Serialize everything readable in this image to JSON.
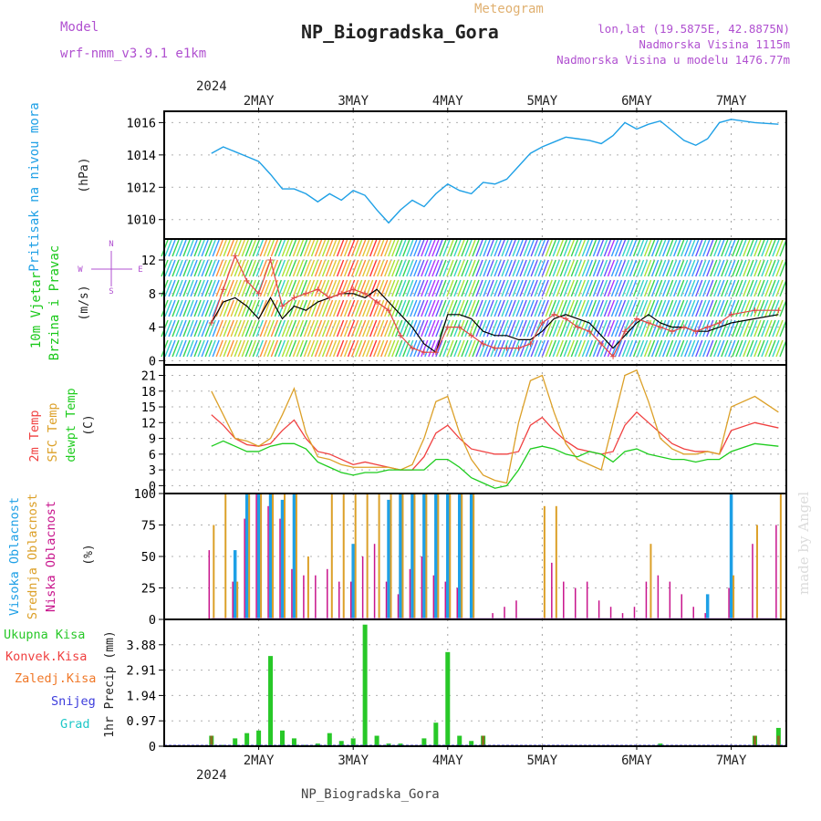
{
  "header": {
    "model_label": "Model",
    "model_name": "wrf-nmm_v3.9.1 e1km",
    "product": "Meteogram",
    "station": "NP_Biogradska_Gora",
    "coords": "lon,lat (19.5875E, 42.8875N)",
    "elevation": "Nadmorska Visina 1115m",
    "model_elevation": "Nadmorska Visina u modelu 1476.77m",
    "footer_station": "NP_Biogradska_Gora",
    "watermark": "made by Angel",
    "year_top": "2024",
    "year_bottom": "2024"
  },
  "colors": {
    "pressure": "#1ea0e6",
    "wind_label": "#19c819",
    "t2m": "#f04040",
    "sfc": "#dca028",
    "dew": "#1ecc1e",
    "high_cloud": "#1ea0e6",
    "mid_cloud": "#dca028",
    "low_cloud": "#c8148c",
    "rain_total": "#28c828",
    "rain_conv": "#f04040",
    "rain_frozen": "#f07828",
    "snow": "#3c3cdc",
    "graupel": "#1ec8c8",
    "model_label": "#b050d0",
    "product": "#e0b070"
  },
  "chart_data": [
    {
      "type": "line",
      "name": "pressure",
      "ylabel": "Pritisak na nivou mora",
      "unit": "(hPa)",
      "ylim": [
        1008.8,
        1016.7
      ],
      "yticks": [
        1010,
        1012,
        1014,
        1016
      ],
      "x_days": [
        "2MAY",
        "3MAY",
        "4MAY",
        "5MAY",
        "6MAY",
        "7MAY"
      ],
      "x_hours": [
        0,
        3,
        6,
        9,
        12,
        15,
        18,
        21,
        24,
        27,
        30,
        33,
        36,
        39,
        42,
        45,
        48,
        51,
        54,
        57,
        60,
        63,
        66,
        69,
        72,
        75,
        78,
        81,
        84,
        87,
        90,
        93,
        96,
        99,
        102,
        105,
        108,
        111,
        114,
        117,
        120,
        123,
        126,
        129,
        132,
        138,
        144
      ],
      "values": [
        1014.1,
        1014.5,
        1014.2,
        1013.9,
        1013.6,
        1012.8,
        1011.9,
        1011.9,
        1011.6,
        1011.1,
        1011.6,
        1011.2,
        1011.8,
        1011.5,
        1010.6,
        1009.8,
        1010.6,
        1011.2,
        1010.8,
        1011.6,
        1012.2,
        1011.8,
        1011.6,
        1012.3,
        1012.2,
        1012.5,
        1013.3,
        1014.1,
        1014.5,
        1014.8,
        1015.1,
        1015.0,
        1014.9,
        1014.7,
        1015.2,
        1016.0,
        1015.6,
        1015.9,
        1016.1,
        1015.5,
        1014.9,
        1014.6,
        1015.0,
        1016.0,
        1016.2,
        1016.0,
        1015.9
      ],
      "grid": true
    },
    {
      "type": "line",
      "name": "wind",
      "ylabel": "10m Vjetar Brzina i Pravac",
      "unit": "(m/s)",
      "compass": [
        "N",
        "E",
        "S",
        "W"
      ],
      "ylim": [
        -0.5,
        14.5
      ],
      "yticks": [
        0,
        4,
        8,
        12
      ],
      "x_hours": [
        0,
        3,
        6,
        9,
        12,
        15,
        18,
        21,
        24,
        27,
        30,
        33,
        36,
        39,
        42,
        45,
        48,
        51,
        54,
        57,
        60,
        63,
        66,
        69,
        72,
        75,
        78,
        81,
        84,
        87,
        90,
        93,
        96,
        99,
        102,
        105,
        108,
        111,
        114,
        117,
        120,
        123,
        126,
        129,
        132,
        138,
        144
      ],
      "mean_speed": [
        4.5,
        7.0,
        7.5,
        6.5,
        5.0,
        7.5,
        5.0,
        6.5,
        6.0,
        7.0,
        7.5,
        8.0,
        8.0,
        7.5,
        8.5,
        7.0,
        5.5,
        4.0,
        2.0,
        1.0,
        5.5,
        5.5,
        5.0,
        3.5,
        3.0,
        3.0,
        2.5,
        2.5,
        3.5,
        5.0,
        5.5,
        5.0,
        4.5,
        3.0,
        1.5,
        3.0,
        4.5,
        5.5,
        4.5,
        4.0,
        4.0,
        3.5,
        3.5,
        4.0,
        4.5,
        5.0,
        5.5
      ],
      "gust": [
        4.5,
        8.5,
        12.5,
        9.5,
        8.0,
        12.0,
        6.5,
        7.5,
        8.0,
        8.5,
        7.5,
        8.0,
        8.5,
        8.0,
        7.0,
        6.0,
        3.0,
        1.5,
        1.0,
        1.0,
        4.0,
        4.0,
        3.0,
        2.0,
        1.5,
        1.5,
        1.5,
        2.0,
        4.5,
        5.5,
        5.0,
        4.0,
        3.5,
        2.0,
        0.5,
        3.5,
        5.0,
        4.5,
        4.0,
        3.5,
        4.0,
        3.5,
        4.0,
        4.5,
        5.5,
        6.0,
        6.0
      ]
    },
    {
      "type": "line",
      "name": "temperature",
      "ylabel_lines": [
        "2m Temp",
        "SFC Temp",
        "dewpt Temp"
      ],
      "unit": "(C)",
      "ylim": [
        -1.5,
        23
      ],
      "yticks": [
        0,
        3,
        6,
        9,
        12,
        15,
        18,
        21
      ],
      "x_hours": [
        0,
        3,
        6,
        9,
        12,
        15,
        18,
        21,
        24,
        27,
        30,
        33,
        36,
        39,
        42,
        45,
        48,
        51,
        54,
        57,
        60,
        63,
        66,
        69,
        72,
        75,
        78,
        81,
        84,
        87,
        90,
        93,
        96,
        99,
        102,
        105,
        108,
        111,
        114,
        117,
        120,
        123,
        126,
        129,
        132,
        138,
        144
      ],
      "series": [
        {
          "name": "2m Temp",
          "values": [
            13.5,
            11.5,
            9.0,
            7.8,
            7.5,
            8.0,
            10.5,
            12.5,
            9.0,
            6.5,
            6.0,
            5.0,
            4.0,
            4.5,
            4.0,
            3.5,
            3.0,
            3.0,
            5.5,
            10.0,
            11.5,
            9.0,
            7.0,
            6.5,
            6.0,
            6.0,
            6.5,
            11.5,
            13.0,
            10.5,
            8.5,
            7.0,
            6.5,
            6.0,
            6.5,
            11.5,
            14.0,
            12.0,
            10.0,
            8.0,
            7.0,
            6.5,
            6.5,
            6.0,
            10.5,
            12.0,
            11.0
          ]
        },
        {
          "name": "SFC Temp",
          "values": [
            18.0,
            13.5,
            9.0,
            8.5,
            7.5,
            9.0,
            13.5,
            18.5,
            10.0,
            5.5,
            5.0,
            4.0,
            3.5,
            3.5,
            3.5,
            3.5,
            3.0,
            4.0,
            9.0,
            16.0,
            17.0,
            10.0,
            5.0,
            2.0,
            1.0,
            0.5,
            12.0,
            20.0,
            21.0,
            14.0,
            8.0,
            5.0,
            4.0,
            3.0,
            12.0,
            21.0,
            22.0,
            16.0,
            9.0,
            7.0,
            6.0,
            6.0,
            6.5,
            6.0,
            15.0,
            17.0,
            14.0
          ]
        },
        {
          "name": "dewpt Temp",
          "values": [
            7.5,
            8.5,
            7.5,
            6.5,
            6.5,
            7.5,
            8.0,
            8.0,
            7.0,
            4.5,
            3.5,
            2.5,
            2.0,
            2.5,
            2.5,
            3.0,
            3.0,
            3.0,
            3.0,
            5.0,
            5.0,
            3.5,
            1.5,
            0.5,
            -0.5,
            0.0,
            3.0,
            7.0,
            7.5,
            7.0,
            6.0,
            5.5,
            6.5,
            6.0,
            4.5,
            6.5,
            7.0,
            6.0,
            5.5,
            5.0,
            5.0,
            4.5,
            5.0,
            5.0,
            6.5,
            8.0,
            7.5
          ]
        }
      ]
    },
    {
      "type": "bar",
      "name": "cloud_cover",
      "ylabel_lines": [
        "Visoka Oblacnost",
        "Srednja Oblacnost",
        "Niska Oblacnost"
      ],
      "unit": "(%)",
      "ylim": [
        0,
        100
      ],
      "yticks": [
        0,
        25,
        50,
        75,
        100
      ],
      "x_hours": [
        0,
        3,
        6,
        9,
        12,
        15,
        18,
        21,
        24,
        27,
        30,
        33,
        36,
        39,
        42,
        45,
        48,
        51,
        54,
        57,
        60,
        63,
        66,
        69,
        72,
        75,
        78,
        81,
        84,
        87,
        90,
        93,
        96,
        99,
        102,
        105,
        108,
        111,
        114,
        117,
        120,
        123,
        126,
        129,
        132,
        138,
        144
      ],
      "series": [
        {
          "name": "Visoka Oblacnost",
          "values": [
            0,
            0,
            55,
            100,
            100,
            100,
            95,
            100,
            0,
            0,
            0,
            0,
            60,
            0,
            0,
            95,
            100,
            100,
            100,
            100,
            100,
            100,
            100,
            0,
            0,
            0,
            0,
            0,
            0,
            0,
            0,
            0,
            0,
            0,
            0,
            0,
            0,
            0,
            0,
            0,
            0,
            0,
            20,
            0,
            100,
            0,
            0
          ]
        },
        {
          "name": "Srednja Oblacnost",
          "values": [
            75,
            100,
            30,
            100,
            100,
            100,
            100,
            100,
            50,
            0,
            100,
            100,
            100,
            100,
            100,
            100,
            100,
            100,
            100,
            100,
            100,
            100,
            100,
            0,
            0,
            0,
            0,
            0,
            90,
            90,
            0,
            0,
            0,
            0,
            0,
            0,
            0,
            60,
            0,
            0,
            0,
            0,
            0,
            0,
            35,
            75,
            100
          ]
        },
        {
          "name": "Niska Oblacnost",
          "values": [
            55,
            0,
            30,
            80,
            100,
            90,
            80,
            40,
            35,
            35,
            40,
            30,
            30,
            50,
            60,
            30,
            20,
            40,
            50,
            35,
            30,
            25,
            0,
            0,
            5,
            10,
            15,
            0,
            0,
            45,
            30,
            25,
            30,
            15,
            10,
            5,
            10,
            30,
            35,
            30,
            20,
            10,
            5,
            0,
            25,
            60,
            75
          ]
        }
      ]
    },
    {
      "type": "bar",
      "name": "precipitation",
      "legend": [
        "Ukupna Kisa",
        "Konvek.Kisa",
        "Zaledj.Kisa",
        "Snijeg",
        "Grad"
      ],
      "ylabel": "1hr Precip (mm)",
      "ylim": [
        0,
        4.85
      ],
      "yticks": [
        0,
        0.97,
        1.94,
        2.91,
        3.88
      ],
      "x_hours": [
        0,
        3,
        6,
        9,
        12,
        15,
        18,
        21,
        24,
        27,
        30,
        33,
        36,
        39,
        42,
        45,
        48,
        51,
        54,
        57,
        60,
        63,
        66,
        69,
        72,
        75,
        78,
        81,
        84,
        87,
        90,
        93,
        96,
        99,
        102,
        105,
        108,
        111,
        114,
        117,
        120,
        123,
        126,
        129,
        132,
        138,
        144
      ],
      "series": [
        {
          "name": "Ukupna Kisa",
          "values": [
            0.4,
            0.05,
            0.3,
            0.5,
            0.6,
            3.45,
            0.6,
            0.3,
            0.05,
            0.1,
            0.5,
            0.2,
            0.3,
            4.65,
            0.4,
            0.1,
            0.1,
            0.0,
            0.3,
            0.9,
            3.6,
            0.4,
            0.2,
            0.4,
            0.0,
            0.0,
            0.0,
            0.0,
            0.0,
            0.0,
            0.0,
            0.0,
            0.0,
            0.0,
            0.0,
            0.0,
            0.0,
            0.0,
            0.1,
            0.0,
            0.0,
            0.0,
            0.0,
            0.0,
            0.0,
            0.4,
            0.7
          ]
        },
        {
          "name": "Konvek.Kisa",
          "values": [
            0.4,
            0.0,
            0.0,
            0.0,
            0.0,
            0.0,
            0.0,
            0.0,
            0.0,
            0.0,
            0.0,
            0.0,
            0.0,
            0.0,
            0.0,
            0.0,
            0.0,
            0.0,
            0.0,
            0.0,
            0.0,
            0.0,
            0.0,
            0.4,
            0.0,
            0.0,
            0.0,
            0.0,
            0.0,
            0.0,
            0.0,
            0.0,
            0.0,
            0.0,
            0.0,
            0.0,
            0.0,
            0.0,
            0.0,
            0.0,
            0.0,
            0.0,
            0.0,
            0.0,
            0.0,
            0.4,
            0.4
          ]
        },
        {
          "name": "Zaledj.Kisa",
          "values": [
            0.0,
            0.0,
            0.0,
            0.0,
            0.0,
            0.0,
            0.0,
            0.0,
            0.0,
            0.0,
            0.0,
            0.0,
            0.0,
            0.0,
            0.0,
            0.0,
            0.0,
            0.0,
            0.0,
            0.0,
            0.0,
            0.0,
            0.0,
            0.0,
            0.0,
            0.0,
            0.0,
            0.0,
            0.0,
            0.0,
            0.0,
            0.0,
            0.0,
            0.0,
            0.0,
            0.0,
            0.0,
            0.0,
            0.0,
            0.0,
            0.0,
            0.0,
            0.0,
            0.0,
            0.0,
            0.0,
            0.0
          ]
        },
        {
          "name": "Snijeg",
          "values": [
            0.0,
            0.0,
            0.0,
            0.0,
            0.0,
            0.0,
            0.0,
            0.0,
            0.0,
            0.0,
            0.0,
            0.0,
            0.0,
            0.0,
            0.0,
            0.0,
            0.0,
            0.0,
            0.0,
            0.0,
            0.0,
            0.0,
            0.0,
            0.0,
            0.0,
            0.0,
            0.0,
            0.0,
            0.0,
            0.0,
            0.0,
            0.0,
            0.0,
            0.0,
            0.0,
            0.0,
            0.0,
            0.0,
            0.0,
            0.0,
            0.0,
            0.0,
            0.0,
            0.0,
            0.0,
            0.0,
            0.0
          ]
        },
        {
          "name": "Grad",
          "values": [
            0.0,
            0.0,
            0.0,
            0.0,
            0.0,
            0.0,
            0.0,
            0.0,
            0.0,
            0.0,
            0.0,
            0.0,
            0.0,
            0.0,
            0.0,
            0.0,
            0.0,
            0.0,
            0.0,
            0.0,
            0.0,
            0.0,
            0.0,
            0.0,
            0.0,
            0.0,
            0.0,
            0.0,
            0.0,
            0.0,
            0.0,
            0.0,
            0.0,
            0.0,
            0.0,
            0.0,
            0.0,
            0.0,
            0.0,
            0.0,
            0.0,
            0.0,
            0.0,
            0.0,
            0.0,
            0.0,
            0.0
          ]
        }
      ]
    }
  ]
}
